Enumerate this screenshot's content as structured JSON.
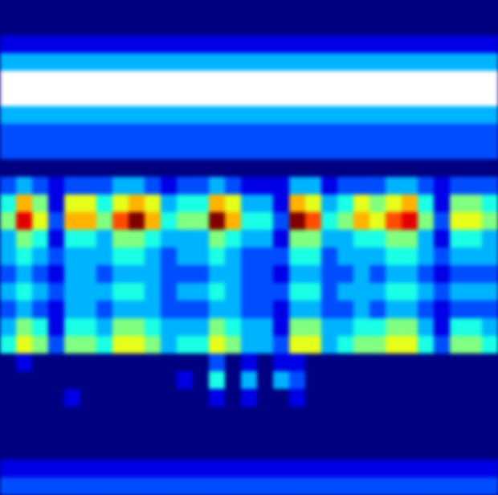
{
  "chart_data": {
    "type": "heatmap",
    "tick_labels": false,
    "color": "jet",
    "color_range": [
      0,
      10
    ],
    "cells": [
      [
        0,
        0,
        0,
        0,
        0,
        0,
        0,
        0,
        0,
        0,
        0,
        0,
        0,
        0,
        0,
        0,
        0,
        0,
        0,
        0,
        0,
        0,
        0,
        0,
        0,
        0,
        0,
        0,
        0,
        0,
        0
      ],
      [
        0,
        0,
        0,
        0,
        0,
        0,
        0,
        0,
        0,
        0,
        0,
        0,
        0,
        0,
        0,
        0,
        0,
        0,
        0,
        0,
        0,
        0,
        0,
        0,
        0,
        0,
        0,
        0,
        0,
        0,
        0
      ],
      [
        1,
        1,
        1,
        1,
        1,
        1,
        1,
        1,
        1,
        1,
        1,
        1,
        1,
        1,
        1,
        1,
        1,
        1,
        1,
        1,
        1,
        1,
        1,
        1,
        1,
        1,
        1,
        1,
        1,
        1,
        1
      ],
      [
        3,
        3,
        3,
        3,
        3,
        3,
        3,
        3,
        3,
        3,
        3,
        3,
        3,
        3,
        3,
        3,
        3,
        3,
        3,
        3,
        3,
        3,
        3,
        3,
        3,
        3,
        3,
        3,
        3,
        3,
        3
      ],
      [
        11,
        11,
        11,
        11,
        11,
        11,
        11,
        11,
        11,
        11,
        11,
        11,
        11,
        11,
        11,
        11,
        11,
        11,
        11,
        11,
        11,
        11,
        11,
        11,
        11,
        11,
        11,
        11,
        11,
        11,
        11
      ],
      [
        11,
        11,
        11,
        11,
        11,
        11,
        11,
        11,
        11,
        11,
        11,
        11,
        11,
        11,
        11,
        11,
        11,
        11,
        11,
        11,
        11,
        11,
        11,
        11,
        11,
        11,
        11,
        11,
        11,
        11,
        11
      ],
      [
        3,
        3,
        3,
        3,
        3,
        3,
        3,
        3,
        3,
        3,
        3,
        3,
        3,
        3,
        3,
        3,
        3,
        3,
        3,
        3,
        3,
        3,
        3,
        3,
        3,
        3,
        3,
        3,
        3,
        3,
        3
      ],
      [
        2,
        2,
        2,
        2,
        2,
        2,
        2,
        2,
        2,
        2,
        2,
        2,
        2,
        2,
        2,
        2,
        2,
        2,
        2,
        2,
        2,
        2,
        2,
        2,
        2,
        2,
        2,
        2,
        2,
        2,
        2
      ],
      [
        2,
        2,
        2,
        2,
        2,
        2,
        2,
        2,
        2,
        2,
        2,
        2,
        2,
        2,
        2,
        2,
        2,
        2,
        2,
        2,
        2,
        2,
        2,
        2,
        2,
        2,
        2,
        2,
        2,
        2,
        2
      ],
      [
        0,
        0,
        0,
        0,
        0,
        0,
        0,
        0,
        0,
        0,
        0,
        0,
        0,
        0,
        0,
        0,
        0,
        0,
        0,
        0,
        0,
        0,
        0,
        0,
        0,
        0,
        0,
        0,
        0,
        0,
        0
      ],
      [
        2,
        3,
        2,
        1,
        2,
        2,
        2,
        3,
        3,
        2,
        1,
        2,
        2,
        3,
        2,
        1,
        1,
        1,
        3,
        3,
        1,
        2,
        2,
        2,
        3,
        3,
        2,
        1,
        2,
        2,
        2
      ],
      [
        4,
        7,
        5,
        1,
        6,
        6,
        4,
        6,
        7,
        6,
        3,
        4,
        4,
        7,
        6,
        3,
        3,
        1,
        7,
        6,
        3,
        4,
        6,
        5,
        6,
        7,
        4,
        1,
        5,
        5,
        4
      ],
      [
        5,
        9,
        6,
        2,
        7,
        7,
        5,
        8,
        10,
        7,
        4,
        5,
        5,
        10,
        7,
        4,
        4,
        2,
        10,
        8,
        4,
        5,
        7,
        6,
        8,
        9,
        5,
        2,
        6,
        6,
        5
      ],
      [
        3,
        5,
        4,
        1,
        4,
        4,
        3,
        5,
        5,
        4,
        3,
        3,
        3,
        5,
        4,
        3,
        3,
        1,
        5,
        5,
        3,
        3,
        4,
        4,
        5,
        5,
        3,
        1,
        4,
        4,
        3
      ],
      [
        3,
        4,
        3,
        2,
        3,
        3,
        3,
        4,
        4,
        3,
        2,
        3,
        3,
        4,
        3,
        2,
        2,
        2,
        4,
        4,
        2,
        3,
        3,
        3,
        4,
        4,
        3,
        2,
        3,
        3,
        3
      ],
      [
        2,
        3,
        2,
        1,
        3,
        3,
        2,
        3,
        3,
        3,
        2,
        2,
        2,
        3,
        3,
        2,
        2,
        1,
        3,
        3,
        2,
        2,
        3,
        2,
        3,
        3,
        2,
        1,
        2,
        2,
        2
      ],
      [
        3,
        4,
        3,
        2,
        3,
        3,
        3,
        4,
        4,
        3,
        2,
        3,
        3,
        4,
        3,
        2,
        2,
        2,
        4,
        4,
        2,
        3,
        3,
        3,
        4,
        4,
        3,
        2,
        3,
        3,
        3
      ],
      [
        2,
        3,
        2,
        1,
        3,
        3,
        2,
        3,
        3,
        3,
        2,
        2,
        2,
        3,
        3,
        2,
        2,
        1,
        3,
        3,
        2,
        2,
        3,
        2,
        3,
        3,
        2,
        1,
        2,
        2,
        2
      ],
      [
        3,
        5,
        4,
        1,
        4,
        4,
        3,
        5,
        5,
        4,
        3,
        3,
        3,
        5,
        4,
        3,
        3,
        1,
        5,
        5,
        3,
        3,
        4,
        4,
        5,
        5,
        3,
        1,
        4,
        4,
        3
      ],
      [
        4,
        6,
        5,
        2,
        5,
        5,
        4,
        6,
        6,
        5,
        3,
        4,
        4,
        6,
        5,
        3,
        3,
        2,
        6,
        6,
        3,
        4,
        5,
        5,
        6,
        6,
        4,
        2,
        5,
        5,
        4
      ],
      [
        0,
        1,
        0,
        0,
        0,
        0,
        0,
        0,
        0,
        0,
        0,
        0,
        0,
        2,
        0,
        1,
        0,
        1,
        1,
        0,
        0,
        0,
        0,
        0,
        0,
        0,
        0,
        0,
        0,
        0,
        0
      ],
      [
        0,
        0,
        0,
        0,
        0,
        0,
        0,
        0,
        0,
        0,
        0,
        1,
        0,
        4,
        0,
        3,
        0,
        3,
        2,
        0,
        0,
        0,
        0,
        0,
        0,
        0,
        0,
        0,
        0,
        0,
        0
      ],
      [
        0,
        0,
        0,
        0,
        1,
        0,
        0,
        0,
        0,
        0,
        0,
        0,
        0,
        1,
        0,
        1,
        0,
        0,
        1,
        0,
        0,
        0,
        0,
        0,
        0,
        0,
        0,
        0,
        0,
        0,
        0
      ],
      [
        0,
        0,
        0,
        0,
        0,
        0,
        0,
        0,
        0,
        0,
        0,
        0,
        0,
        0,
        0,
        0,
        0,
        0,
        0,
        0,
        0,
        0,
        0,
        0,
        0,
        0,
        0,
        0,
        0,
        0,
        0
      ],
      [
        0,
        0,
        0,
        0,
        0,
        0,
        0,
        0,
        0,
        0,
        0,
        0,
        0,
        0,
        0,
        0,
        0,
        0,
        0,
        0,
        0,
        0,
        0,
        0,
        0,
        0,
        0,
        0,
        0,
        0,
        0
      ],
      [
        0,
        0,
        0,
        0,
        0,
        0,
        0,
        0,
        0,
        0,
        0,
        0,
        0,
        0,
        0,
        0,
        0,
        0,
        0,
        0,
        0,
        0,
        0,
        0,
        0,
        0,
        0,
        0,
        0,
        0,
        0
      ],
      [
        1,
        1,
        1,
        1,
        1,
        1,
        1,
        1,
        1,
        1,
        1,
        1,
        1,
        1,
        1,
        1,
        1,
        1,
        1,
        1,
        1,
        1,
        1,
        1,
        1,
        1,
        1,
        1,
        1,
        1,
        1
      ],
      [
        2,
        2,
        2,
        2,
        2,
        2,
        2,
        2,
        2,
        2,
        2,
        2,
        2,
        2,
        2,
        2,
        2,
        2,
        2,
        2,
        2,
        2,
        2,
        2,
        2,
        2,
        2,
        2,
        2,
        2,
        2
      ]
    ]
  }
}
